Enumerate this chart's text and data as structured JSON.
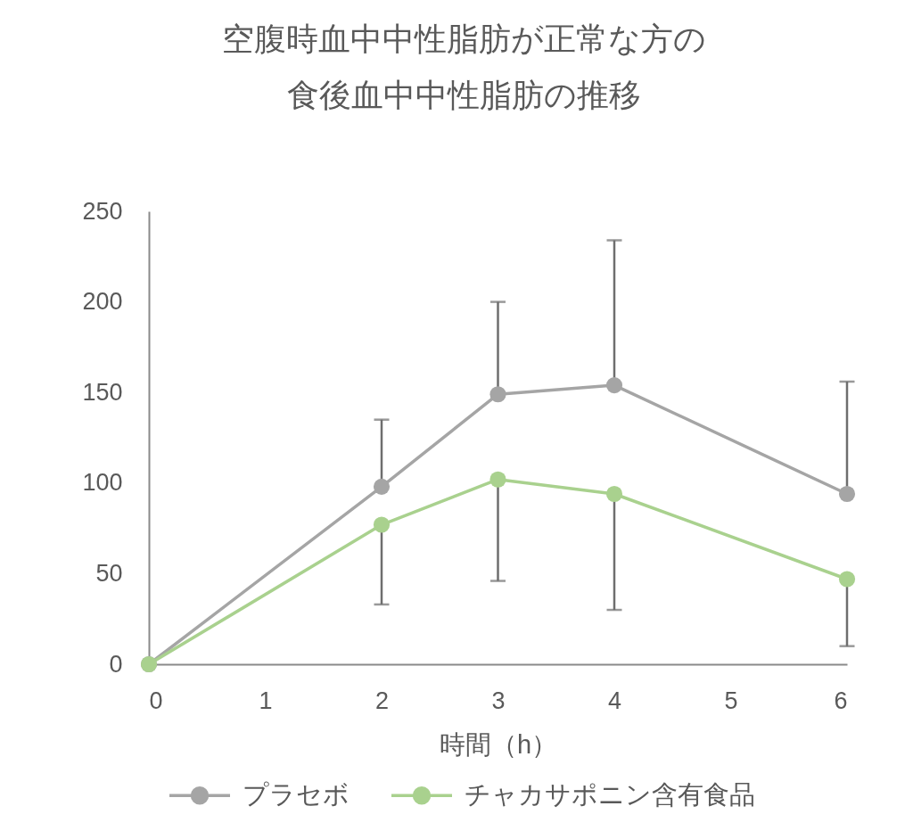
{
  "chart_data": {
    "type": "line",
    "title": "空腹時血中中性脂肪が正常な方の食後血中中性脂肪の推移",
    "xlabel": "時間（h）",
    "x": [
      0,
      2,
      3,
      4,
      6
    ],
    "xlim": [
      0,
      6
    ],
    "xticks": [
      0,
      1,
      2,
      3,
      4,
      5,
      6
    ],
    "ylim": [
      0,
      250
    ],
    "yticks": [
      0,
      50,
      100,
      150,
      200,
      250
    ],
    "legend": "bottom",
    "marker": "circle",
    "line_style": "solid",
    "series": [
      {
        "name": "プラセボ",
        "color": "#a5a5a5",
        "values": [
          0,
          98,
          149,
          154,
          94
        ],
        "errors": [
          null,
          [
            98,
            135
          ],
          [
            149,
            200
          ],
          [
            154,
            234
          ],
          [
            94,
            156
          ]
        ]
      },
      {
        "name": "チャカサポニン含有食品",
        "color": "#a9d18e",
        "values": [
          0,
          77,
          102,
          94,
          47
        ],
        "errors": [
          null,
          [
            33,
            77
          ],
          [
            46,
            102
          ],
          [
            30,
            94
          ],
          [
            10,
            47
          ]
        ]
      }
    ]
  }
}
